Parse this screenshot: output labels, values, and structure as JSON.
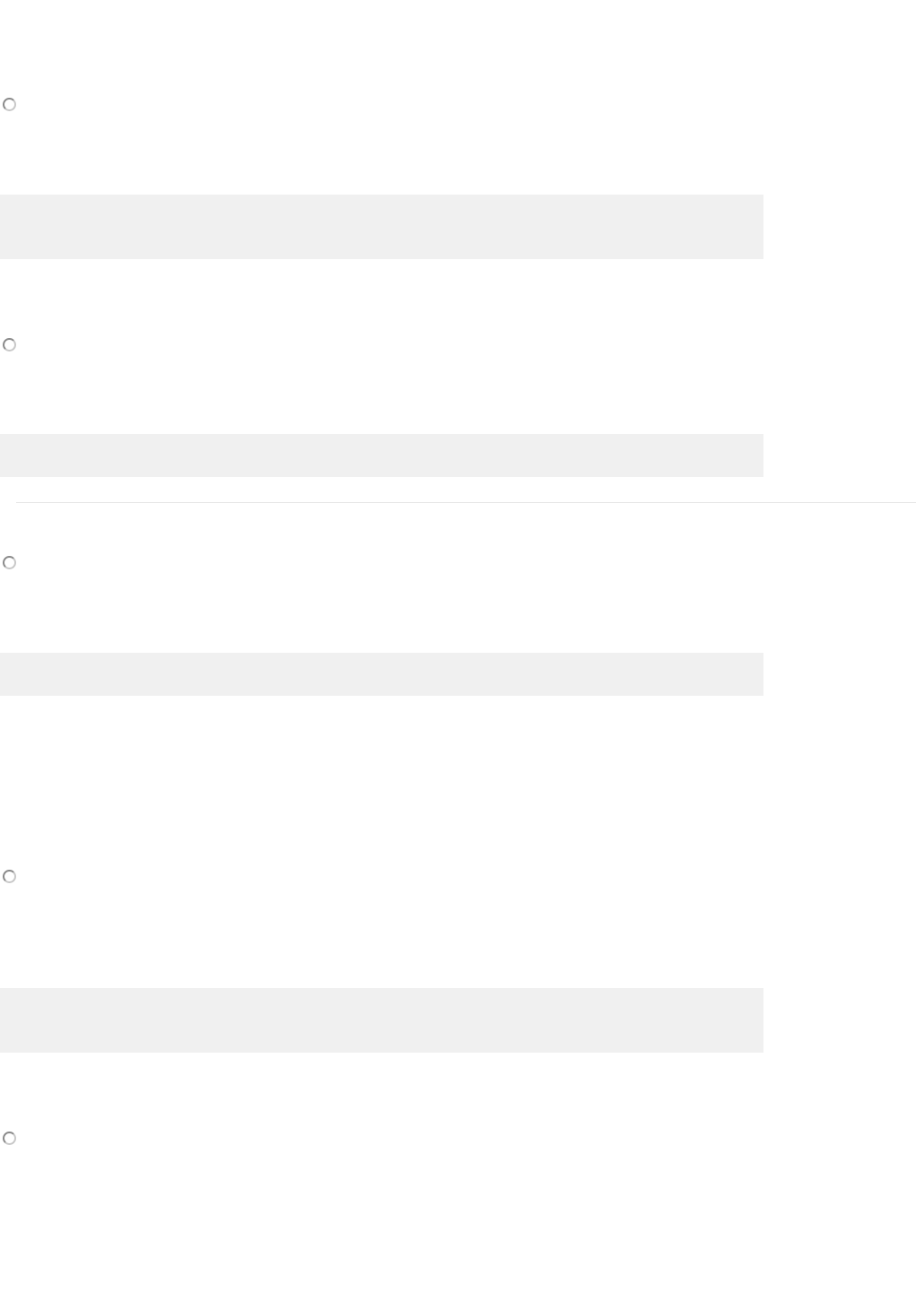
{
  "options": [
    {
      "selected": false
    },
    {
      "selected": false
    },
    {
      "selected": false
    },
    {
      "selected": false
    },
    {
      "selected": false
    }
  ],
  "colors": {
    "field_background": "#f0f0f0",
    "radio_border": "#9a9a9a",
    "divider": "#efefef"
  }
}
